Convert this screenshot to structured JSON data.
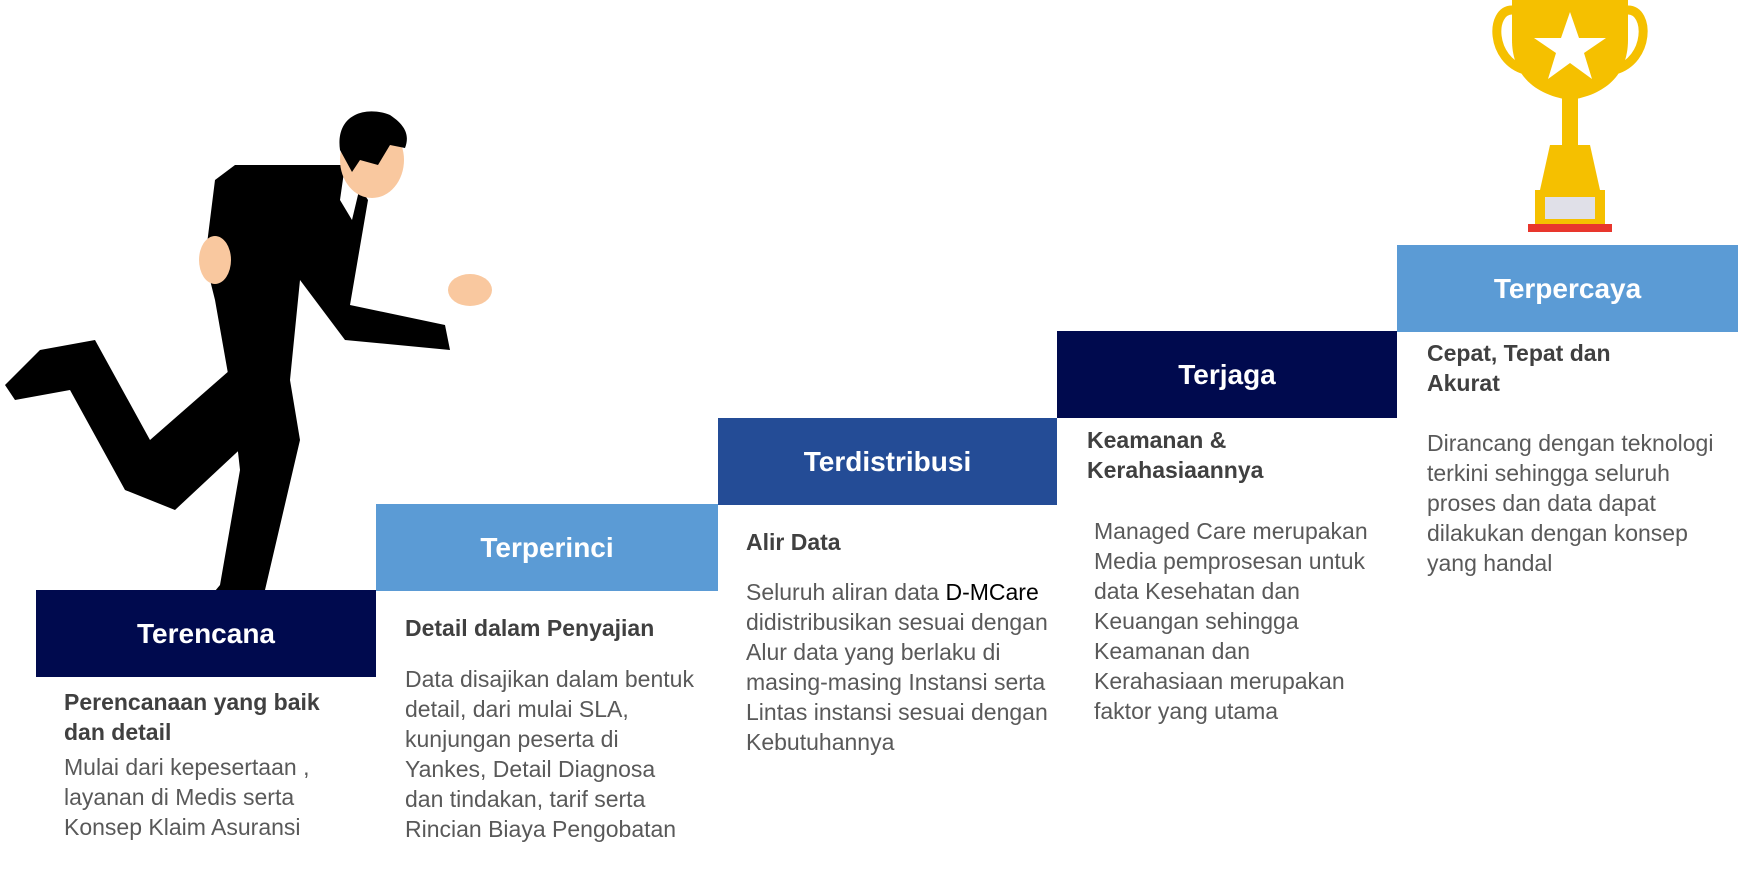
{
  "colors": {
    "dark_navy": "#000a4e",
    "royal_blue": "#244c96",
    "light_blue": "#5b9bd5",
    "trophy_gold": "#f5c000",
    "text_heading": "#404040",
    "text_body": "#595959"
  },
  "steps": [
    {
      "title": "Terencana",
      "subtitle": "Perencanaan yang baik dan detail",
      "body": "Mulai dari kepesertaan , layanan di Medis serta Konsep Klaim Asuransi"
    },
    {
      "title": "Terperinci",
      "subtitle": "Detail dalam Penyajian",
      "body": "Data disajikan dalam bentuk detail, dari mulai SLA, kunjungan peserta di Yankes, Detail Diagnosa dan tindakan, tarif serta Rincian Biaya Pengobatan"
    },
    {
      "title": "Terdistribusi",
      "subtitle": "Alir Data",
      "body_before": "Seluruh aliran data ",
      "body_highlight": "D-MCare",
      "body_after": " didistribusikan sesuai dengan Alur data yang berlaku di masing-masing Instansi serta Lintas instansi sesuai dengan Kebutuhannya"
    },
    {
      "title": "Terjaga",
      "subtitle": "Keamanan & Kerahasiaannya",
      "body": "Managed Care merupakan Media pemprosesan untuk data Kesehatan dan Keuangan sehingga Keamanan dan Kerahasiaan merupakan faktor yang utama"
    },
    {
      "title": "Terpercaya",
      "subtitle": "Cepat, Tepat dan Akurat",
      "body": "Dirancang dengan teknologi terkini sehingga seluruh proses dan data dapat dilakukan dengan konsep yang handal"
    }
  ],
  "illustrations": {
    "runner": "businessman-running-icon",
    "trophy": "trophy-star-icon"
  }
}
